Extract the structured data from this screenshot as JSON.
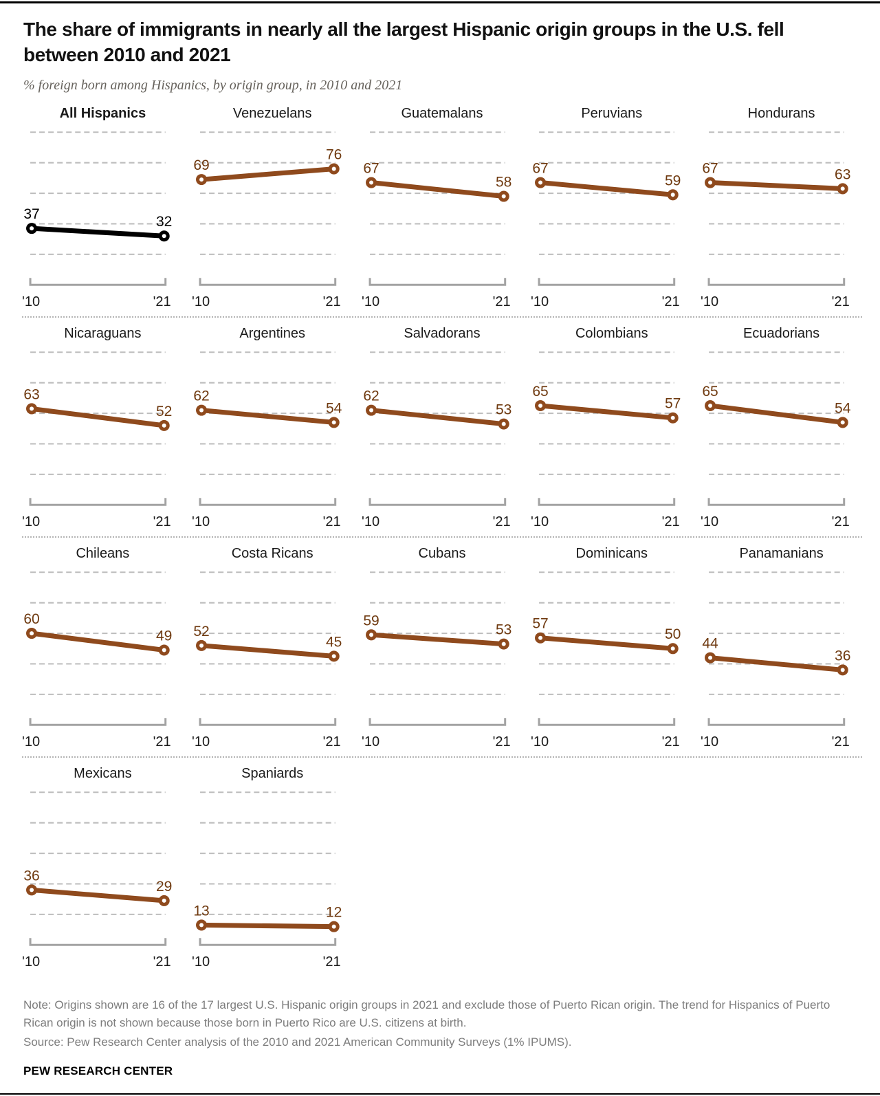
{
  "header": {
    "title": "The share of immigrants in nearly all the largest Hispanic origin groups in the U.S. fell between 2010 and 2021",
    "subtitle": "% foreign born among Hispanics, by origin group, in 2010 and 2021"
  },
  "chart_data": {
    "type": "line",
    "variant": "slope-small-multiples",
    "x": [
      "'10",
      "'21"
    ],
    "years": [
      2010,
      2021
    ],
    "ylim": [
      0,
      100
    ],
    "gridlines": [
      20,
      40,
      60,
      80,
      100
    ],
    "grid_on": true,
    "columns_per_row": 5,
    "series": [
      {
        "name": "All Hispanics",
        "values": [
          37,
          32
        ],
        "color": "#000000",
        "emphasis": true
      },
      {
        "name": "Venezuelans",
        "values": [
          69,
          76
        ],
        "color": "#8F4A1D"
      },
      {
        "name": "Guatemalans",
        "values": [
          67,
          58
        ],
        "color": "#8F4A1D"
      },
      {
        "name": "Peruvians",
        "values": [
          67,
          59
        ],
        "color": "#8F4A1D"
      },
      {
        "name": "Hondurans",
        "values": [
          67,
          63
        ],
        "color": "#8F4A1D"
      },
      {
        "name": "Nicaraguans",
        "values": [
          63,
          52
        ],
        "color": "#8F4A1D"
      },
      {
        "name": "Argentines",
        "values": [
          62,
          54
        ],
        "color": "#8F4A1D"
      },
      {
        "name": "Salvadorans",
        "values": [
          62,
          53
        ],
        "color": "#8F4A1D"
      },
      {
        "name": "Colombians",
        "values": [
          65,
          57
        ],
        "color": "#8F4A1D"
      },
      {
        "name": "Ecuadorians",
        "values": [
          65,
          54
        ],
        "color": "#8F4A1D"
      },
      {
        "name": "Chileans",
        "values": [
          60,
          49
        ],
        "color": "#8F4A1D"
      },
      {
        "name": "Costa Ricans",
        "values": [
          52,
          45
        ],
        "color": "#8F4A1D"
      },
      {
        "name": "Cubans",
        "values": [
          59,
          53
        ],
        "color": "#8F4A1D"
      },
      {
        "name": "Dominicans",
        "values": [
          57,
          50
        ],
        "color": "#8F4A1D"
      },
      {
        "name": "Panamanians",
        "values": [
          44,
          36
        ],
        "color": "#8F4A1D"
      },
      {
        "name": "Mexicans",
        "values": [
          36,
          29
        ],
        "color": "#8F4A1D"
      },
      {
        "name": "Spaniards",
        "values": [
          13,
          12
        ],
        "color": "#8F4A1D"
      }
    ]
  },
  "colors": {
    "accent_brown": "#8F4A1D",
    "value_label_brown": "#6F3A10",
    "value_label_black": "#000000",
    "gridline_gray": "#BDBDBD",
    "axis_gray": "#A3A3A3",
    "note_gray": "#7D7D7D"
  },
  "footer": {
    "note": "Note: Origins shown are 16 of the 17 largest U.S. Hispanic origin groups in 2021 and exclude those of Puerto Rican origin. The trend for Hispanics of Puerto Rican origin is not shown because those born in Puerto Rico are U.S. citizens at birth.",
    "source": "Source: Pew Research Center analysis of the 2010 and 2021 American Community Surveys (1% IPUMS).",
    "brand": "PEW RESEARCH CENTER"
  }
}
